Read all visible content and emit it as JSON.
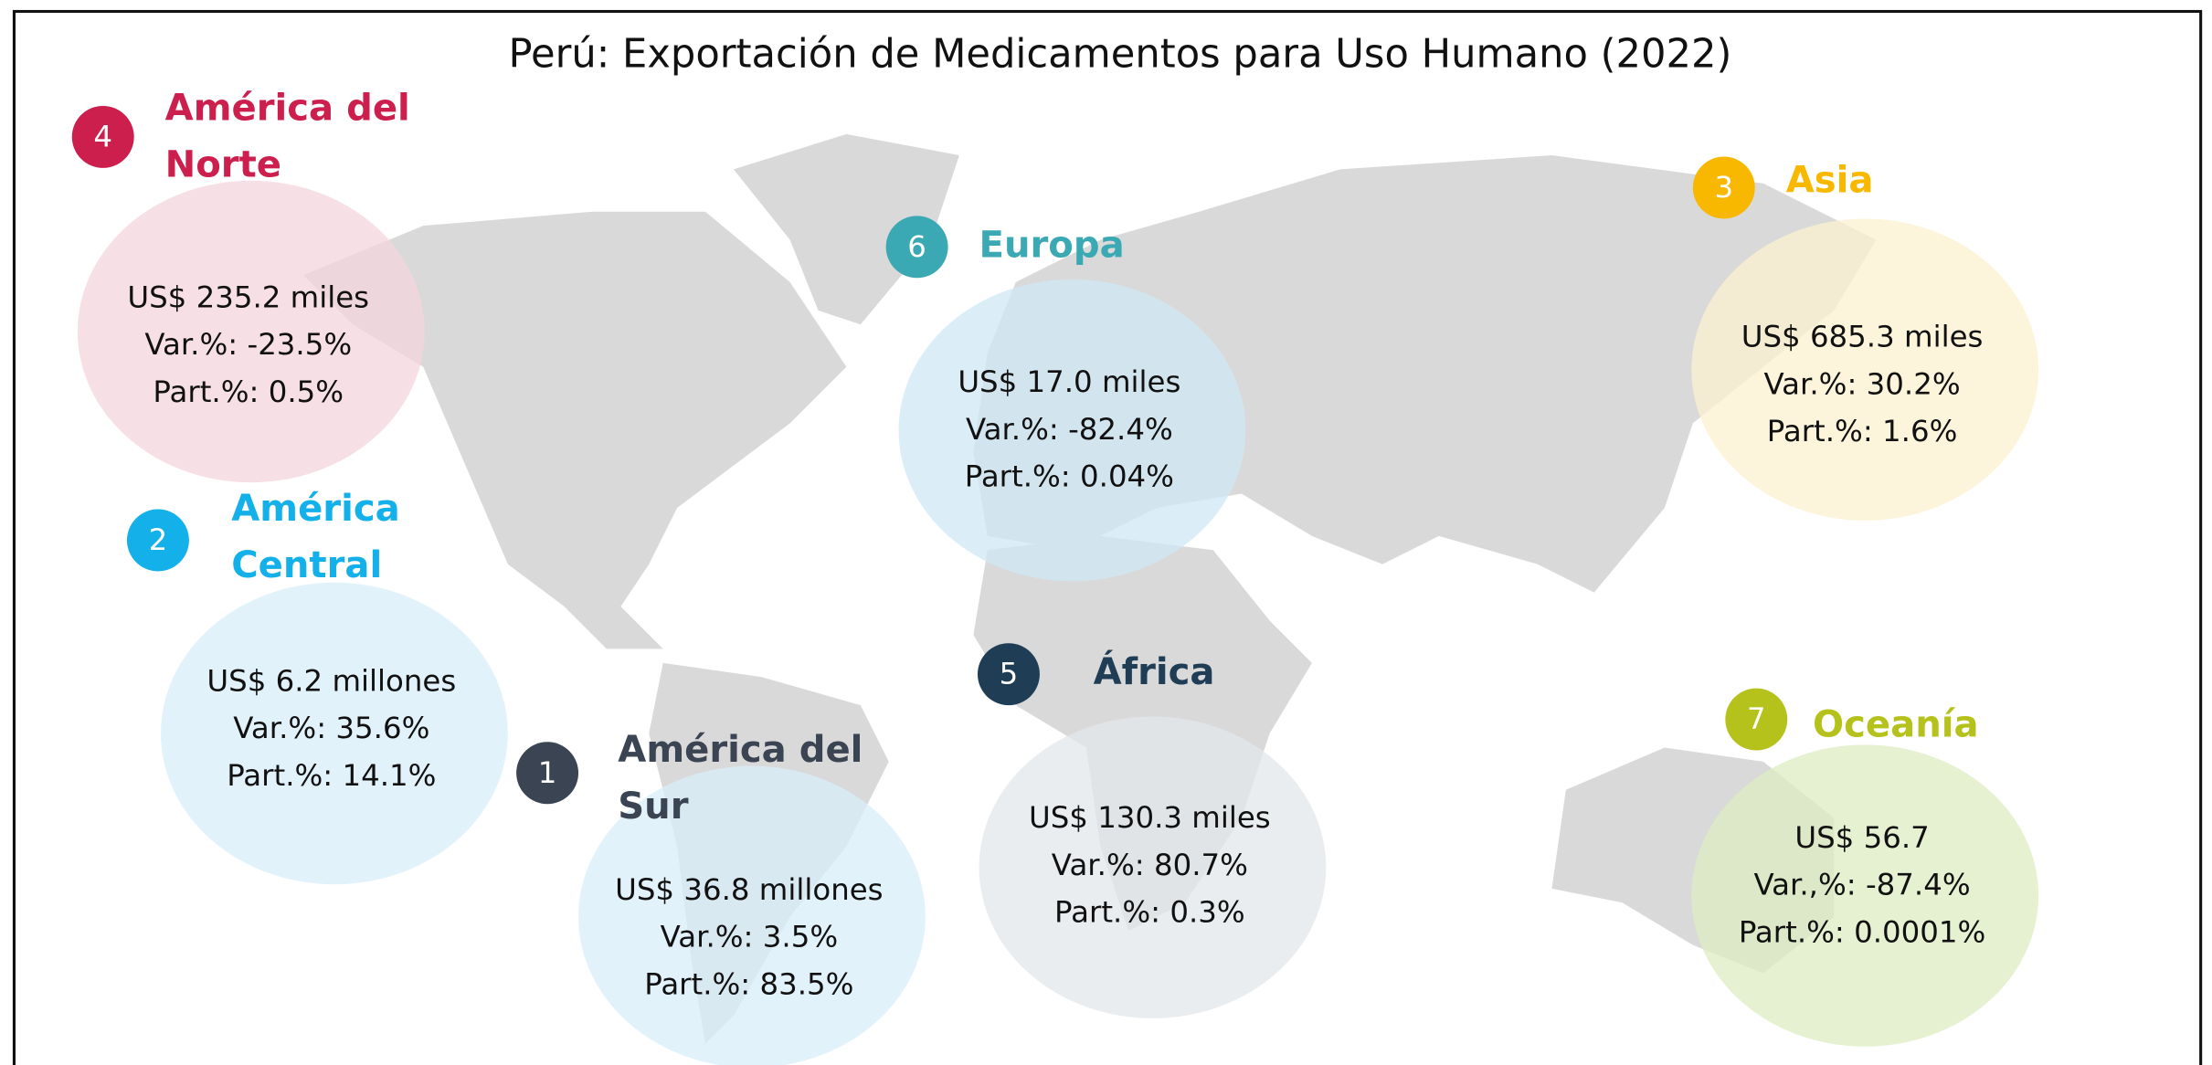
{
  "title": "Perú: Exportación de Medicamentos para Uso Humano (2022)",
  "regions": [
    {
      "number": 4,
      "name_lines": [
        "América del",
        "Norte"
      ],
      "color": "#cc1f4d",
      "fill": "#f3d5dc",
      "lines": [
        "US$ 235.2 miles",
        "Var.%: -23.5%",
        "Part.%: 0.5%"
      ]
    },
    {
      "number": 2,
      "name_lines": [
        "América",
        "Central"
      ],
      "color": "#14b0ea",
      "fill": "#d8eefa",
      "lines": [
        "US$ 6.2 millones",
        "Var.%: 35.6%",
        "Part.%: 14.1%"
      ]
    },
    {
      "number": 1,
      "name_lines": [
        "América del",
        "Sur"
      ],
      "color": "#3a4452",
      "fill": "#d8eefa",
      "lines": [
        "US$ 36.8 millones",
        "Var.%: 3.5%",
        "Part.%: 83.5%"
      ]
    },
    {
      "number": 6,
      "name_lines": [
        "Europa"
      ],
      "color": "#3aa9b4",
      "fill": "#cfe8f5",
      "lines": [
        "US$ 17.0 miles",
        "Var.%: -82.4%",
        "Part.%: 0.04%"
      ]
    },
    {
      "number": 5,
      "name_lines": [
        "África"
      ],
      "color": "#1f3d55",
      "fill": "#e3e7ea",
      "lines": [
        "US$ 130.3 miles",
        "Var.%: 80.7%",
        "Part.%: 0.3%"
      ]
    },
    {
      "number": 3,
      "name_lines": [
        "Asia"
      ],
      "color": "#f9b800",
      "fill": "#fcf0d0",
      "lines": [
        "US$ 685.3 miles",
        "Var.%: 30.2%",
        "Part.%: 1.6%"
      ]
    },
    {
      "number": 7,
      "name_lines": [
        "Oceanía"
      ],
      "color": "#b5c21b",
      "fill": "#dcecc2",
      "lines": [
        "US$ 56.7",
        "Var.,%: -87.4%",
        "Part.%: 0.0001%"
      ]
    }
  ]
}
